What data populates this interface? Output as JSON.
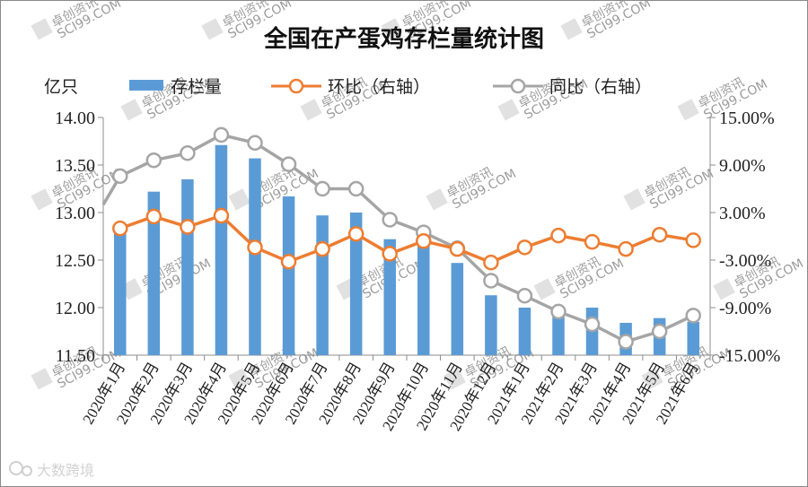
{
  "chart_data": {
    "type": "bar+line",
    "title": "全国在产蛋鸡存栏量统计图",
    "unit_left": "亿只",
    "categories": [
      "2020年1月",
      "2020年2月",
      "2020年3月",
      "2020年4月",
      "2020年5月",
      "2020年6月",
      "2020年7月",
      "2020年8月",
      "2020年9月",
      "2020年10月",
      "2020年11月",
      "2020年12月",
      "2021年1月",
      "2021年2月",
      "2021年3月",
      "2021年4月",
      "2021年5月",
      "2021年6月"
    ],
    "y_left": {
      "ylim": [
        11.5,
        14.0
      ],
      "ticks": [
        "11.50",
        "12.00",
        "12.50",
        "13.00",
        "13.50",
        "14.00"
      ]
    },
    "y_right": {
      "ylim": [
        -15,
        15
      ],
      "ticks": [
        "-15.00%",
        "-9.00%",
        "-3.00%",
        "3.00%",
        "9.00%",
        "15.00%"
      ]
    },
    "series": [
      {
        "name": "存栏量",
        "type": "bar",
        "axis": "left",
        "color": "#5b9bd5",
        "values": [
          12.87,
          13.22,
          13.35,
          13.71,
          13.57,
          13.17,
          12.97,
          13.0,
          12.72,
          12.72,
          12.47,
          12.13,
          12.0,
          11.98,
          12.0,
          11.84,
          11.89,
          11.85
        ]
      },
      {
        "name": "环比（右轴）",
        "type": "line",
        "axis": "right",
        "color": "#ed7d31",
        "values": [
          1.0,
          2.5,
          1.2,
          2.6,
          -1.4,
          -3.2,
          -1.6,
          0.3,
          -2.2,
          -0.6,
          -1.6,
          -3.3,
          -1.4,
          0.1,
          -0.7,
          -1.6,
          0.2,
          -0.5
        ]
      },
      {
        "name": "同比（右轴）",
        "type": "line",
        "axis": "right",
        "color": "#a5a5a5",
        "values": [
          7.6,
          9.6,
          10.5,
          12.8,
          11.8,
          9.1,
          6.0,
          6.0,
          2.1,
          0.5,
          -1.5,
          -5.6,
          -7.5,
          -9.5,
          -11.1,
          -13.3,
          -12.0,
          -10.0
        ]
      }
    ],
    "left_stub_value": 4.0,
    "legend": "top",
    "grid": false
  },
  "watermarks": [
    "卓创资讯",
    "SCI99.COM"
  ],
  "brand_logo_text": "大数跨境",
  "colors": {
    "bar": "#5b9bd5",
    "mom": "#ed7d31",
    "yoy": "#a5a5a5",
    "axis": "#8c8c8c"
  }
}
